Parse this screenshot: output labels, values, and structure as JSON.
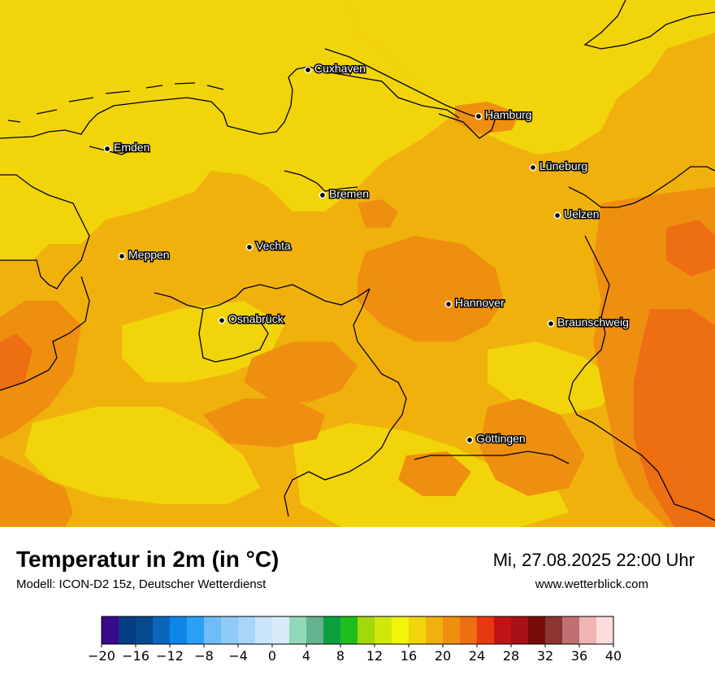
{
  "map": {
    "cities": [
      {
        "name": "Cuxhaven"
      },
      {
        "name": "Hamburg"
      },
      {
        "name": "Emden"
      },
      {
        "name": "Lüneburg"
      },
      {
        "name": "Bremen"
      },
      {
        "name": "Uelzen"
      },
      {
        "name": "Vechta"
      },
      {
        "name": "Meppen"
      },
      {
        "name": "Hannover"
      },
      {
        "name": "Osnabrück"
      },
      {
        "name": "Braunschweig"
      },
      {
        "name": "Göttingen"
      }
    ],
    "colors": {
      "t18_20": "#f2d40a",
      "t20_22": "#f0b10d",
      "t22_24": "#ef8f10",
      "t24_26": "#ee6e12",
      "border": "#000000"
    }
  },
  "footer": {
    "title": "Temperatur in 2m (in °C)",
    "subtitle": "Modell: ICON-D2 15z, Deutscher Wetterdienst",
    "datetime": "Mi, 27.08.2025 22:00 Uhr",
    "website": "www.wetterblick.com"
  },
  "legend": {
    "min": -20,
    "max": 40,
    "colors": [
      "#3a0a8c",
      "#063c84",
      "#064a8e",
      "#0a66bd",
      "#0d86ea",
      "#2aa0f5",
      "#6fbcf8",
      "#8fcbf9",
      "#a8d5fa",
      "#c9e4fb",
      "#d9ebfa",
      "#90d8b8",
      "#62b48e",
      "#0aa040",
      "#20be1c",
      "#a2d80c",
      "#cfe80a",
      "#f0f50a",
      "#f2d40a",
      "#f0b10d",
      "#ef8f10",
      "#ee6e12",
      "#e8380e",
      "#c01414",
      "#a81018",
      "#7a0a0a",
      "#8c3430",
      "#c07070",
      "#f0b4b4",
      "#fcdcdc"
    ],
    "tick_labels": [
      "−20",
      "−16",
      "−12",
      "−8",
      "−4",
      "0",
      "4",
      "8",
      "12",
      "16",
      "20",
      "24",
      "28",
      "32",
      "36",
      "40"
    ]
  }
}
